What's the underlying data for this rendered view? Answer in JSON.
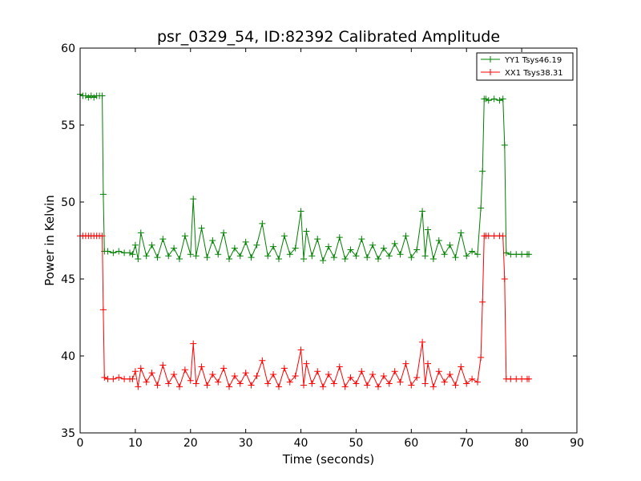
{
  "chart_data": {
    "type": "line",
    "title": "psr_0329_54, ID:82392 Calibrated Amplitude",
    "xlabel": "Time (seconds)",
    "ylabel": "Power in Kelvin",
    "xlim": [
      0,
      90
    ],
    "ylim": [
      35,
      60
    ],
    "xticks": [
      0,
      10,
      20,
      30,
      40,
      50,
      60,
      70,
      80,
      90
    ],
    "yticks": [
      35,
      40,
      45,
      50,
      55,
      60
    ],
    "xtick_labels": [
      "0",
      "10",
      "20",
      "30",
      "40",
      "50",
      "60",
      "70",
      "80",
      "90"
    ],
    "ytick_labels": [
      "35",
      "40",
      "45",
      "50",
      "55",
      "60"
    ],
    "grid": false,
    "legend": "top-right",
    "marker": "+",
    "series": [
      {
        "name": "YY1 Tsys46.19",
        "color": "#008000",
        "x": [
          0,
          0.5,
          1,
          1.5,
          2,
          2.5,
          3,
          3.5,
          4,
          4.2,
          4.4,
          5,
          6,
          7,
          8,
          9,
          9.5,
          10,
          10.5,
          11,
          12,
          13,
          14,
          15,
          16,
          17,
          18,
          19,
          20,
          20.5,
          21,
          22,
          23,
          24,
          25,
          26,
          27,
          28,
          29,
          30,
          31,
          32,
          33,
          34,
          35,
          36,
          37,
          38,
          39,
          40,
          40.5,
          41,
          42,
          43,
          44,
          45,
          46,
          47,
          48,
          49,
          50,
          51,
          52,
          53,
          54,
          55,
          56,
          57,
          58,
          59,
          60,
          61,
          62,
          62.5,
          63,
          64,
          65,
          66,
          67,
          68,
          69,
          70,
          71,
          72,
          72.6,
          72.9,
          73.2,
          73.5,
          74,
          75,
          76,
          76.6,
          76.9,
          77.2,
          78,
          79,
          80,
          81,
          81.3
        ],
        "y": [
          57.0,
          56.9,
          56.9,
          56.8,
          56.9,
          56.8,
          56.9,
          56.9,
          56.9,
          50.5,
          46.8,
          46.8,
          46.7,
          46.8,
          46.7,
          46.7,
          46.6,
          47.2,
          46.3,
          48.0,
          46.5,
          47.2,
          46.4,
          47.6,
          46.5,
          47.0,
          46.3,
          47.8,
          46.6,
          50.2,
          46.5,
          48.3,
          46.4,
          47.5,
          46.6,
          48.0,
          46.3,
          47.0,
          46.5,
          47.4,
          46.4,
          47.2,
          48.6,
          46.5,
          47.1,
          46.3,
          47.8,
          46.6,
          47.0,
          49.4,
          46.3,
          48.1,
          46.5,
          47.6,
          46.2,
          47.1,
          46.4,
          47.7,
          46.3,
          46.9,
          46.5,
          47.6,
          46.4,
          47.2,
          46.3,
          47.0,
          46.5,
          47.3,
          46.6,
          47.8,
          46.4,
          46.9,
          49.4,
          46.5,
          48.2,
          46.3,
          47.5,
          46.6,
          47.2,
          46.4,
          48.0,
          46.5,
          46.8,
          46.6,
          49.6,
          52.0,
          56.7,
          56.7,
          56.6,
          56.7,
          56.6,
          56.7,
          53.7,
          46.7,
          46.6,
          46.6,
          46.6,
          46.6,
          46.6
        ]
      },
      {
        "name": "XX1 Tsys38.31",
        "color": "#ff0000",
        "x": [
          0,
          0.5,
          1,
          1.5,
          2,
          2.5,
          3,
          3.5,
          4,
          4.2,
          4.4,
          5,
          6,
          7,
          8,
          9,
          9.5,
          10,
          10.5,
          11,
          12,
          13,
          14,
          15,
          16,
          17,
          18,
          19,
          20,
          20.5,
          21,
          22,
          23,
          24,
          25,
          26,
          27,
          28,
          29,
          30,
          31,
          32,
          33,
          34,
          35,
          36,
          37,
          38,
          39,
          40,
          40.5,
          41,
          42,
          43,
          44,
          45,
          46,
          47,
          48,
          49,
          50,
          51,
          52,
          53,
          54,
          55,
          56,
          57,
          58,
          59,
          60,
          61,
          62,
          62.5,
          63,
          64,
          65,
          66,
          67,
          68,
          69,
          70,
          71,
          72,
          72.6,
          72.9,
          73.2,
          73.5,
          74,
          75,
          76,
          76.6,
          76.9,
          77.2,
          78,
          79,
          80,
          81,
          81.3
        ],
        "y": [
          47.8,
          47.8,
          47.8,
          47.8,
          47.8,
          47.8,
          47.8,
          47.8,
          47.8,
          43.0,
          38.6,
          38.5,
          38.5,
          38.6,
          38.5,
          38.5,
          38.5,
          39.0,
          38.0,
          39.2,
          38.3,
          38.9,
          38.1,
          39.4,
          38.2,
          38.8,
          38.0,
          39.1,
          38.4,
          40.8,
          38.2,
          39.3,
          38.1,
          38.8,
          38.3,
          39.2,
          38.0,
          38.7,
          38.2,
          38.9,
          38.1,
          38.7,
          39.7,
          38.2,
          38.8,
          38.0,
          39.2,
          38.3,
          38.7,
          40.4,
          38.1,
          39.5,
          38.2,
          39.0,
          38.0,
          38.8,
          38.2,
          39.3,
          38.0,
          38.6,
          38.2,
          39.0,
          38.1,
          38.8,
          38.0,
          38.7,
          38.2,
          39.0,
          38.3,
          39.5,
          38.1,
          38.6,
          40.9,
          38.2,
          39.5,
          38.0,
          39.0,
          38.3,
          38.8,
          38.1,
          39.3,
          38.2,
          38.5,
          38.3,
          39.9,
          43.5,
          47.8,
          47.8,
          47.8,
          47.8,
          47.8,
          47.8,
          45.0,
          38.5,
          38.5,
          38.5,
          38.5,
          38.5,
          38.5
        ]
      }
    ]
  }
}
